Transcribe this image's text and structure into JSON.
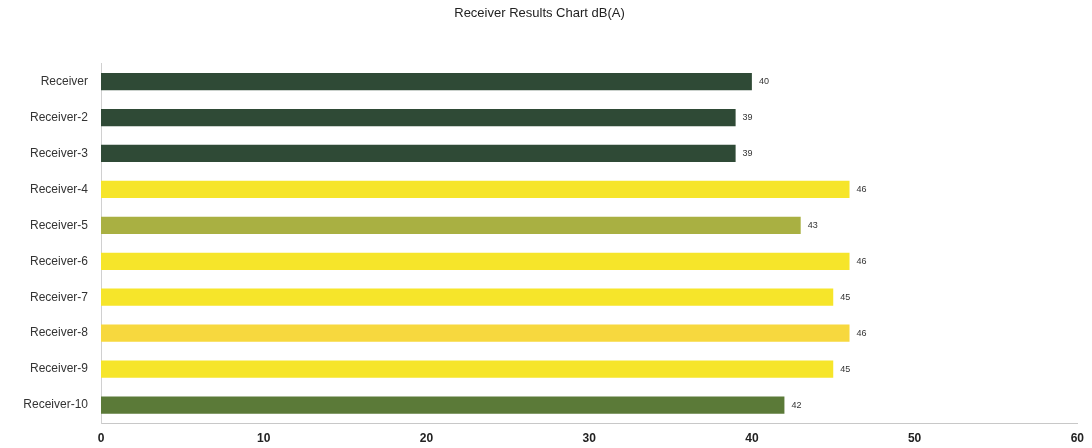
{
  "chart_data": {
    "type": "bar",
    "orientation": "horizontal",
    "title": "Receiver Results Chart dB(A)",
    "categories": [
      "Receiver",
      "Receiver-2",
      "Receiver-3",
      "Receiver-4",
      "Receiver-5",
      "Receiver-6",
      "Receiver-7",
      "Receiver-8",
      "Receiver-9",
      "Receiver-10"
    ],
    "values": [
      40,
      39,
      39,
      46,
      43,
      46,
      45,
      46,
      45,
      42
    ],
    "colors": [
      "#2f4a36",
      "#2f4a36",
      "#2f4a36",
      "#f6e52a",
      "#a9b042",
      "#f6e52a",
      "#f6e52a",
      "#f7d83e",
      "#f6e52a",
      "#5b7a38"
    ],
    "xlim": [
      0,
      60
    ],
    "xticks": [
      0,
      10,
      20,
      30,
      40,
      50,
      60
    ],
    "data_labels": true
  }
}
